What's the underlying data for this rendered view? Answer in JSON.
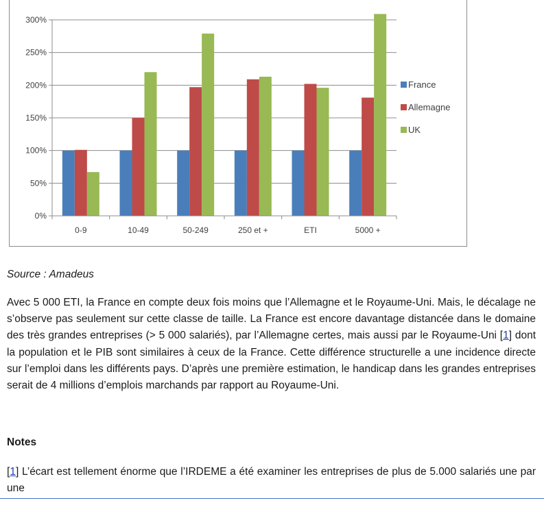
{
  "chart_data": {
    "type": "bar",
    "categories": [
      "0-9",
      "10-49",
      "50-249",
      "250 et +",
      "ETI",
      "5000 +"
    ],
    "series": [
      {
        "name": "France",
        "color": "#4a7ebb",
        "values": [
          100,
          100,
          100,
          100,
          100,
          100
        ]
      },
      {
        "name": "Allemagne",
        "color": "#be4b48",
        "values": [
          101,
          150,
          197,
          209,
          202,
          181
        ]
      },
      {
        "name": "UK",
        "color": "#98b954",
        "values": [
          67,
          220,
          279,
          213,
          196,
          309
        ]
      }
    ],
    "yticks": [
      "0%",
      "50%",
      "100%",
      "150%",
      "200%",
      "250%",
      "300%"
    ],
    "ylim": [
      0,
      300
    ],
    "grid": true,
    "legend_position": "right"
  },
  "source": "Source : Amadeus",
  "paragraph": {
    "before_ref": "Avec 5 000 ETI, la France en compte deux fois moins que l’Allemagne et le Royaume-Uni. Mais, le décalage ne s’observe pas seulement sur cette classe de taille. La France est encore davantage distancée dans le domaine des très grandes entreprises (> 5 000 salariés), par l’Allemagne certes, mais aussi par le Royaume-Uni ",
    "ref": "1",
    "after_ref": " dont la population et le PIB sont similaires à ceux de la France. Cette différence structurelle a une incidence directe sur l’emploi dans les différents pays. D’après une première estimation, le handicap dans les grandes entreprises serait de 4 millions d’emplois marchands par rapport au Royaume-Uni."
  },
  "notes": {
    "title": "Notes",
    "items": [
      {
        "ref": "1",
        "text": "  L’écart est tellement énorme que l’IRDEME a été examiner les entreprises de plus de 5.000 salariés une par une"
      }
    ]
  }
}
